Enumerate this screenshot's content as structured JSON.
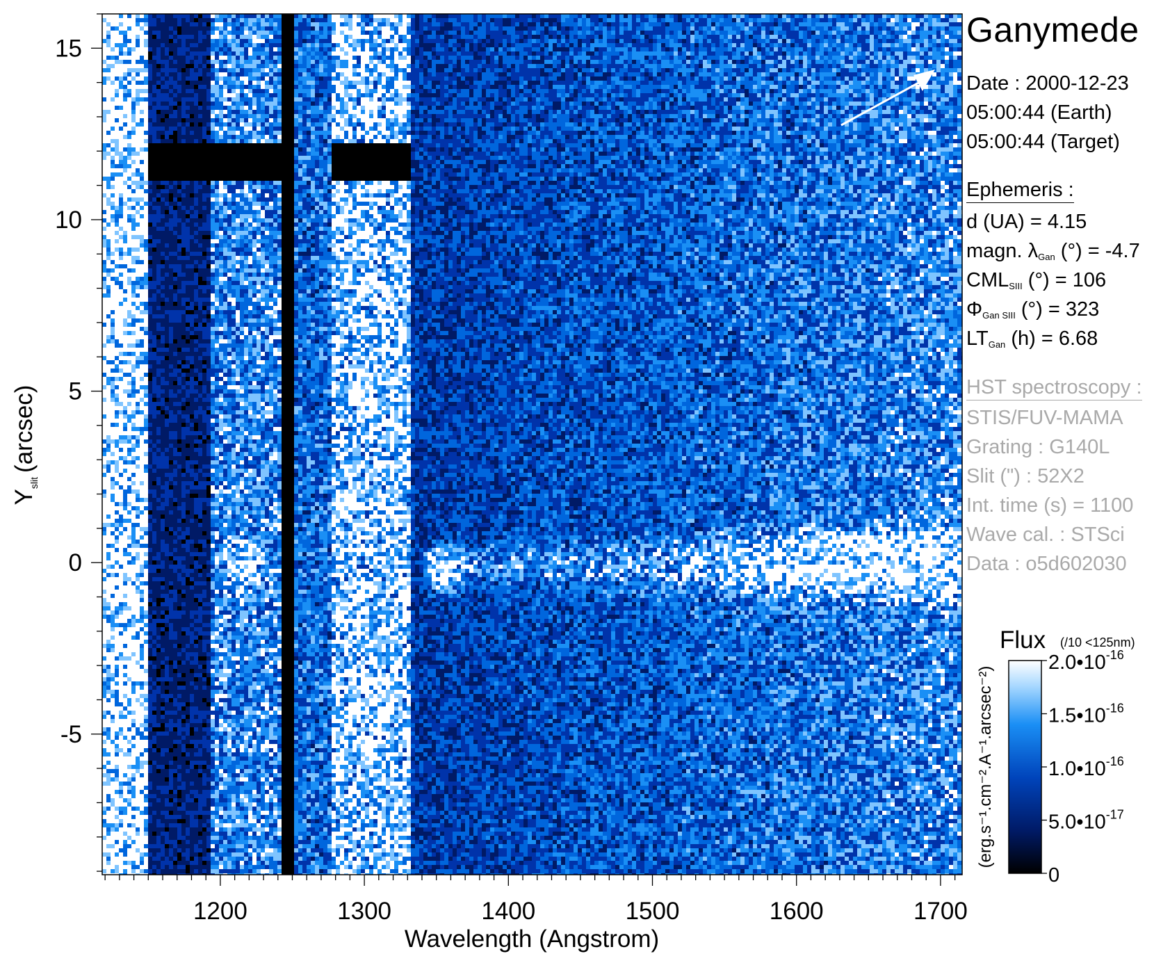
{
  "chart_data": {
    "type": "heatmap",
    "xlabel": "Wavelength (Angstrom)",
    "ylabel_main": "Y",
    "ylabel_sub": "slit",
    "ylabel_unit": "(arcsec)",
    "xlim": [
      1118,
      1715
    ],
    "ylim": [
      -9.1,
      16.0
    ],
    "x_ticks": [
      1200,
      1300,
      1400,
      1500,
      1600,
      1700
    ],
    "x_tick_labels": [
      "1200",
      "1300",
      "1400",
      "1500",
      "1600",
      "1700"
    ],
    "y_ticks": [
      -5,
      0,
      5,
      10,
      15
    ],
    "y_tick_labels": [
      "-5",
      "0",
      "5",
      "10",
      "15"
    ],
    "colormap": [
      "#000000",
      "#001a66",
      "#0033aa",
      "#0066dd",
      "#1a8ff5",
      "#7fc4ff",
      "#ffffff"
    ],
    "features": {
      "airglow_bands": [
        {
          "x0": 1118,
          "x1": 1148,
          "level": 0.95
        },
        {
          "x0": 1148,
          "x1": 1192,
          "level": 0.22
        },
        {
          "x0": 1192,
          "x1": 1240,
          "level": 0.6
        },
        {
          "x0": 1240,
          "x1": 1250,
          "level": 0.03
        },
        {
          "x0": 1250,
          "x1": 1276,
          "level": 0.5
        },
        {
          "x0": 1276,
          "x1": 1330,
          "level": 0.82
        }
      ],
      "occulting_bar_y": [
        11.2,
        12.3
      ],
      "spectrum_trace_y": 0
    },
    "colorbar": {
      "title": "Flux",
      "note": "(/10 <125nm)",
      "unit_label": "(erg.s⁻¹.cm⁻².A⁻¹.arcsec⁻²)",
      "range": [
        0,
        2e-16
      ],
      "ticks": [
        {
          "value": 0,
          "mantissa": "0",
          "exponent": ""
        },
        {
          "value": 5e-17,
          "mantissa": "5.0•10",
          "exponent": "-17"
        },
        {
          "value": 1e-16,
          "mantissa": "1.0•10",
          "exponent": "-16"
        },
        {
          "value": 1.5e-16,
          "mantissa": "1.5•10",
          "exponent": "-16"
        },
        {
          "value": 2e-16,
          "mantissa": "2.0•10",
          "exponent": "-16"
        }
      ]
    }
  },
  "panel": {
    "title": "Ganymede",
    "date": "Date : 2000-12-23",
    "time_earth": "05:00:44 (Earth)",
    "time_target": "05:00:44 (Target)",
    "ephemeris_header": "Ephemeris :",
    "eph_d": "d (UA)     = 4.15",
    "eph_lambda_pre": "magn. λ",
    "eph_lambda_sub": "Gan",
    "eph_lambda_post": " (°)  = -4.7",
    "eph_cml_pre": "CML",
    "eph_cml_sub": "SIII",
    "eph_cml_post": " (°) = 106",
    "eph_phi_pre": "Φ",
    "eph_phi_sub": "Gan SIII",
    "eph_phi_post": " (°) = 323",
    "eph_lt_pre": "LT",
    "eph_lt_sub": "Gan",
    "eph_lt_post": " (h) = 6.68",
    "hst_header": "HST spectroscopy :",
    "instrument": "STIS/FUV-MAMA",
    "grating": "Grating : G140L",
    "slit": "Slit (\") : 52X2",
    "int_time": "Int. time (s) = 1100",
    "wave_cal": "Wave cal. : STSci",
    "dataset": "Data : o5d602030"
  }
}
